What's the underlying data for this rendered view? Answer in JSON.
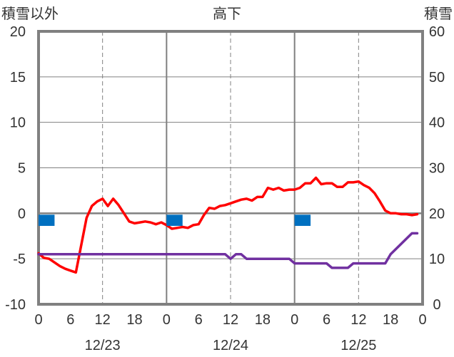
{
  "chart_data": {
    "type": "line",
    "title": "高下",
    "y_left_label": "積雪以外",
    "y_right_label": "積雪",
    "y_left_range": [
      -10,
      20
    ],
    "y_left_ticks": [
      "20",
      "15",
      "10",
      "5",
      "0",
      "-5",
      "-10"
    ],
    "y_right_range": [
      0,
      60
    ],
    "y_right_ticks": [
      "60",
      "50",
      "40",
      "30",
      "20",
      "10",
      "0"
    ],
    "x_range_hours": [
      0,
      72
    ],
    "x_tick_labels": [
      "0",
      "6",
      "12",
      "18",
      "0",
      "6",
      "12",
      "18",
      "0",
      "6",
      "12",
      "18",
      "0"
    ],
    "date_labels": [
      "12/23",
      "12/24",
      "12/25"
    ],
    "grid": "dashed vertical at 12h, solid at day boundaries, solid horizontal at 0",
    "series": [
      {
        "color": "#ff0000",
        "axis": "left",
        "points": [
          [
            0,
            -4.4
          ],
          [
            1,
            -4.9
          ],
          [
            2,
            -5.0
          ],
          [
            3,
            -5.4
          ],
          [
            4,
            -5.8
          ],
          [
            5,
            -6.1
          ],
          [
            6,
            -6.3
          ],
          [
            7,
            -6.5
          ],
          [
            8,
            -3.5
          ],
          [
            9,
            -0.5
          ],
          [
            10,
            0.8
          ],
          [
            11,
            1.3
          ],
          [
            12,
            1.6
          ],
          [
            13,
            0.8
          ],
          [
            14,
            1.6
          ],
          [
            15,
            0.9
          ],
          [
            16,
            0.0
          ],
          [
            17,
            -0.9
          ],
          [
            18,
            -1.1
          ],
          [
            19,
            -1.0
          ],
          [
            20,
            -0.9
          ],
          [
            21,
            -1.0
          ],
          [
            22,
            -1.2
          ],
          [
            23,
            -1.0
          ],
          [
            24,
            -1.3
          ],
          [
            25,
            -1.7
          ],
          [
            26,
            -1.6
          ],
          [
            27,
            -1.5
          ],
          [
            28,
            -1.6
          ],
          [
            29,
            -1.3
          ],
          [
            30,
            -1.2
          ],
          [
            31,
            -0.2
          ],
          [
            32,
            0.6
          ],
          [
            33,
            0.5
          ],
          [
            34,
            0.8
          ],
          [
            35,
            0.9
          ],
          [
            36,
            1.1
          ],
          [
            37,
            1.3
          ],
          [
            38,
            1.5
          ],
          [
            39,
            1.6
          ],
          [
            40,
            1.4
          ],
          [
            41,
            1.8
          ],
          [
            42,
            1.8
          ],
          [
            43,
            2.8
          ],
          [
            44,
            2.6
          ],
          [
            45,
            2.8
          ],
          [
            46,
            2.5
          ],
          [
            47,
            2.6
          ],
          [
            48,
            2.6
          ],
          [
            49,
            2.8
          ],
          [
            50,
            3.3
          ],
          [
            51,
            3.3
          ],
          [
            52,
            3.9
          ],
          [
            53,
            3.2
          ],
          [
            54,
            3.3
          ],
          [
            55,
            3.3
          ],
          [
            56,
            2.9
          ],
          [
            57,
            2.9
          ],
          [
            58,
            3.4
          ],
          [
            59,
            3.4
          ],
          [
            60,
            3.5
          ],
          [
            61,
            3.1
          ],
          [
            62,
            2.8
          ],
          [
            63,
            2.2
          ],
          [
            64,
            1.3
          ],
          [
            65,
            0.3
          ],
          [
            66,
            0.0
          ],
          [
            67,
            0.0
          ],
          [
            68,
            -0.1
          ],
          [
            69,
            -0.1
          ],
          [
            70,
            -0.2
          ],
          [
            71,
            -0.1
          ]
        ]
      },
      {
        "color": "#7030a0",
        "axis": "left",
        "points": [
          [
            0,
            -4.5
          ],
          [
            35,
            -4.5
          ],
          [
            36,
            -5.0
          ],
          [
            37,
            -4.5
          ],
          [
            38,
            -4.5
          ],
          [
            39,
            -5.0
          ],
          [
            47,
            -5.0
          ],
          [
            48,
            -5.5
          ],
          [
            54,
            -5.5
          ],
          [
            55,
            -6.0
          ],
          [
            58,
            -6.0
          ],
          [
            59,
            -5.5
          ],
          [
            65,
            -5.5
          ],
          [
            66,
            -4.5
          ],
          [
            70,
            -2.2
          ],
          [
            71,
            -2.2
          ]
        ]
      },
      {
        "color": "#0070c0",
        "axis": "left",
        "type": "bars",
        "bars": [
          [
            0,
            3,
            -0.6
          ],
          [
            24,
            27,
            -0.6
          ],
          [
            48,
            51,
            -0.6
          ]
        ]
      }
    ]
  }
}
